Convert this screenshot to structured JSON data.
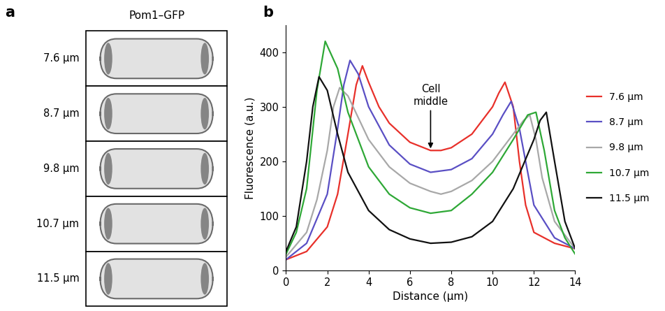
{
  "panel_a": {
    "panel_label": "a",
    "title": "Pom1–GFP",
    "rows": [
      "7.6 µm",
      "8.7 µm",
      "9.8 µm",
      "10.7 µm",
      "11.5 µm"
    ]
  },
  "chart_data": {
    "type": "line",
    "panel_label": "b",
    "x_label": "Distance (µm)",
    "y_label": "Fluorescence (a.u.)",
    "annotation": "Cell\nmiddle",
    "xlim": [
      0,
      14
    ],
    "xticks": [
      0,
      2,
      4,
      6,
      8,
      10,
      12,
      14
    ],
    "ylim": [
      0,
      450
    ],
    "yticks": [
      0,
      100,
      200,
      300,
      400
    ],
    "legend": "center left",
    "grid": false,
    "series": [
      {
        "name": "7.6 µm",
        "color": "#e8302a",
        "x": [
          0,
          1,
          2,
          2.5,
          3,
          3.4,
          3.7,
          4,
          4.5,
          5,
          6,
          7,
          7.5,
          8,
          9,
          10,
          10.3,
          10.6,
          11,
          11.3,
          11.6,
          12,
          13,
          14
        ],
        "values": [
          20,
          35,
          80,
          140,
          250,
          340,
          375,
          345,
          300,
          270,
          235,
          220,
          220,
          225,
          250,
          300,
          325,
          345,
          300,
          200,
          120,
          70,
          50,
          40
        ]
      },
      {
        "name": "8.7 µm",
        "color": "#5a4fc4",
        "x": [
          0,
          1,
          2,
          2.5,
          2.8,
          3.1,
          3.5,
          4,
          5,
          6,
          7,
          8,
          9,
          10,
          10.5,
          10.9,
          11.3,
          11.7,
          12,
          13,
          14
        ],
        "values": [
          20,
          50,
          140,
          260,
          340,
          385,
          360,
          300,
          230,
          195,
          180,
          185,
          205,
          250,
          285,
          310,
          260,
          180,
          120,
          60,
          40
        ]
      },
      {
        "name": "9.8 µm",
        "color": "#a8a8a8",
        "x": [
          0,
          1,
          1.5,
          2,
          2.3,
          2.6,
          3,
          4,
          5,
          6,
          7,
          7.5,
          8,
          9,
          10,
          11,
          11.5,
          11.8,
          12.1,
          12.4,
          13,
          14
        ],
        "values": [
          25,
          70,
          130,
          220,
          300,
          335,
          320,
          240,
          190,
          160,
          145,
          140,
          145,
          165,
          200,
          250,
          275,
          285,
          240,
          170,
          90,
          40
        ]
      },
      {
        "name": "10.7 µm",
        "color": "#2ea836",
        "x": [
          0,
          0.5,
          1,
          1.5,
          1.9,
          2.5,
          3,
          4,
          5,
          6,
          7,
          8,
          9,
          10,
          11,
          11.7,
          12.1,
          12.5,
          13,
          13.5,
          14
        ],
        "values": [
          30,
          70,
          150,
          330,
          420,
          370,
          290,
          190,
          140,
          115,
          105,
          110,
          140,
          180,
          240,
          285,
          290,
          220,
          110,
          60,
          30
        ]
      },
      {
        "name": "11.5 µm",
        "color": "#111111",
        "x": [
          0,
          0.5,
          1,
          1.3,
          1.6,
          2,
          2.5,
          3,
          4,
          5,
          6,
          7,
          8,
          9,
          10,
          11,
          12,
          12.3,
          12.6,
          13,
          13.5,
          14
        ],
        "values": [
          35,
          80,
          200,
          300,
          355,
          330,
          250,
          180,
          110,
          75,
          58,
          50,
          52,
          62,
          90,
          150,
          240,
          275,
          290,
          200,
          90,
          40
        ]
      }
    ]
  }
}
